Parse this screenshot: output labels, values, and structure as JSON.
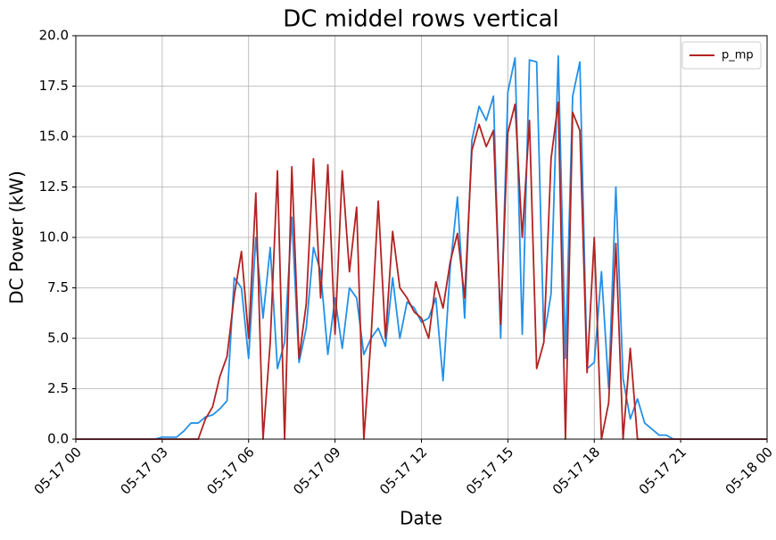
{
  "chart_data": {
    "type": "line",
    "title": "DC middel rows vertical",
    "xlabel": "Date",
    "ylabel": "DC Power (kW)",
    "x": [
      0,
      0.25,
      0.5,
      0.75,
      1,
      1.25,
      1.5,
      1.75,
      2,
      2.25,
      2.5,
      2.75,
      3,
      3.25,
      3.5,
      3.75,
      4,
      4.25,
      4.5,
      4.75,
      5,
      5.25,
      5.5,
      5.75,
      6,
      6.25,
      6.5,
      6.75,
      7,
      7.25,
      7.5,
      7.75,
      8,
      8.25,
      8.5,
      8.75,
      9,
      9.25,
      9.5,
      9.75,
      10,
      10.25,
      10.5,
      10.75,
      11,
      11.25,
      11.5,
      11.75,
      12,
      12.25,
      12.5,
      12.75,
      13,
      13.25,
      13.5,
      13.75,
      14,
      14.25,
      14.5,
      14.75,
      15,
      15.25,
      15.5,
      15.75,
      16,
      16.25,
      16.5,
      16.75,
      17,
      17.25,
      17.5,
      17.75,
      18,
      18.25,
      18.5,
      18.75,
      19,
      19.25,
      19.5,
      19.75,
      20,
      20.25,
      20.5,
      20.75,
      21,
      21.25,
      21.5,
      21.75,
      22,
      22.25,
      22.5,
      22.75,
      23,
      23.25,
      23.5,
      23.75,
      24
    ],
    "series": [
      {
        "color": "#2390e8",
        "values": [
          0,
          0,
          0,
          0,
          0,
          0,
          0,
          0,
          0,
          0,
          0,
          0,
          0.1,
          0.1,
          0.1,
          0.4,
          0.8,
          0.8,
          1.1,
          1.2,
          1.5,
          1.9,
          8.0,
          7.5,
          4.0,
          10.0,
          6.0,
          9.5,
          3.5,
          4.8,
          11.0,
          3.8,
          5.5,
          9.5,
          8.3,
          4.2,
          7.0,
          4.5,
          7.5,
          7.0,
          4.2,
          5.0,
          5.5,
          4.6,
          8.0,
          5.0,
          6.8,
          6.5,
          5.8,
          6.0,
          7.0,
          2.9,
          8.5,
          12.0,
          6.0,
          14.8,
          16.5,
          15.8,
          17.0,
          5.0,
          17.2,
          18.9,
          5.2,
          18.8,
          18.7,
          5.0,
          7.2,
          19.0,
          4.0,
          17.0,
          18.7,
          3.5,
          3.8,
          8.3,
          2.5,
          12.5,
          3.0,
          1.0,
          2.0,
          0.8,
          0.5,
          0.2,
          0.2,
          0,
          0,
          0,
          0,
          0,
          0,
          0,
          0,
          0,
          0,
          0,
          0,
          0,
          0
        ]
      },
      {
        "name": "p_mp",
        "color": "#b22222",
        "values": [
          0,
          0,
          0,
          0,
          0,
          0,
          0,
          0,
          0,
          0,
          0,
          0,
          0,
          0,
          0,
          0,
          0,
          0,
          1.0,
          1.6,
          3.1,
          4.1,
          7.1,
          9.3,
          5.0,
          12.2,
          0,
          4.8,
          13.3,
          0,
          13.5,
          4.0,
          6.7,
          13.9,
          7.0,
          13.6,
          5.2,
          13.3,
          8.3,
          11.5,
          0,
          5.0,
          11.8,
          5.0,
          10.3,
          7.5,
          7.0,
          6.3,
          6.0,
          5.0,
          7.8,
          6.5,
          8.8,
          10.2,
          7.0,
          14.3,
          15.6,
          14.5,
          15.3,
          5.7,
          15.2,
          16.6,
          10.0,
          15.8,
          3.5,
          4.8,
          13.9,
          16.7,
          0,
          16.2,
          15.3,
          3.3,
          10.0,
          0,
          1.8,
          9.7,
          0,
          4.5,
          0,
          0,
          0,
          0,
          0,
          0,
          0,
          0,
          0,
          0,
          0,
          0,
          0,
          0,
          0,
          0,
          0,
          0,
          0
        ]
      }
    ],
    "xlim": [
      0,
      24
    ],
    "xticks": [
      {
        "value": 0,
        "label": "05-17 00"
      },
      {
        "value": 3,
        "label": "05-17 03"
      },
      {
        "value": 6,
        "label": "05-17 06"
      },
      {
        "value": 9,
        "label": "05-17 09"
      },
      {
        "value": 12,
        "label": "05-17 12"
      },
      {
        "value": 15,
        "label": "05-17 15"
      },
      {
        "value": 18,
        "label": "05-17 18"
      },
      {
        "value": 21,
        "label": "05-17 21"
      },
      {
        "value": 24,
        "label": "05-18 00"
      }
    ],
    "ylim": [
      0,
      20
    ],
    "yticks": [
      {
        "value": 0,
        "label": "0.0"
      },
      2.5,
      {
        "value": 5,
        "label": "5.0"
      },
      7.5,
      {
        "value": 10,
        "label": "10.0"
      },
      12.5,
      {
        "value": 15,
        "label": "15.0"
      },
      17.5,
      {
        "value": 20,
        "label": "20.0"
      }
    ],
    "grid": true,
    "legend": "upper right"
  }
}
